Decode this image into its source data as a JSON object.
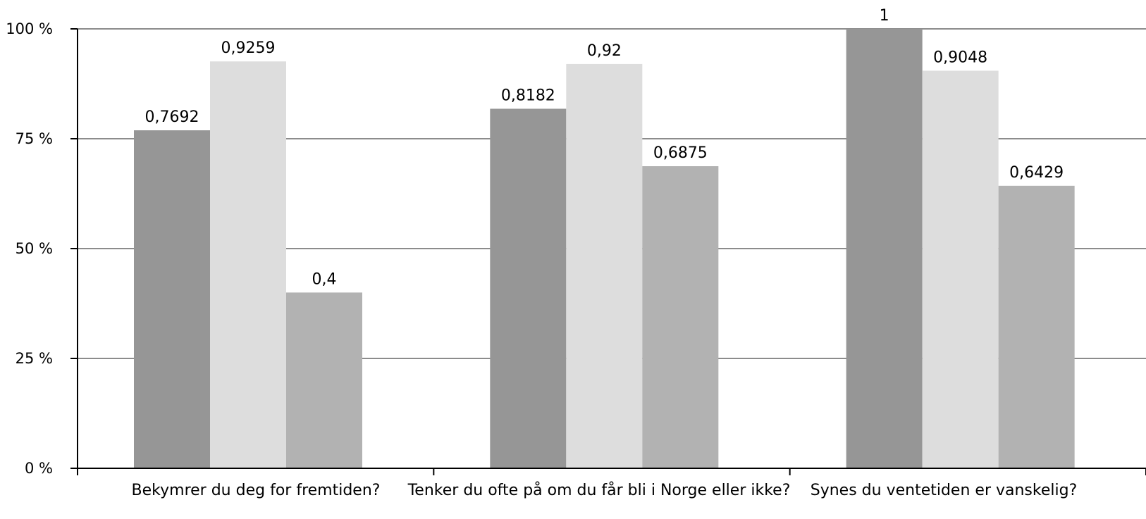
{
  "chart_data": {
    "type": "bar",
    "categories": [
      "Bekymrer du deg for fremtiden?",
      "Tenker du ofte på om du får bli i Norge eller ikke?",
      "Synes du ventetiden er vanskelig?"
    ],
    "series": [
      {
        "values": [
          0.7692,
          0.8182,
          1
        ],
        "labels": [
          "0,7692",
          "0,8182",
          "1"
        ],
        "color": "#969696"
      },
      {
        "values": [
          0.9259,
          0.92,
          0.9048
        ],
        "labels": [
          "0,9259",
          "0,92",
          "0,9048"
        ],
        "color": "#dddddd"
      },
      {
        "values": [
          0.4,
          0.6875,
          0.6429
        ],
        "labels": [
          "0,4",
          "0,6875",
          "0,6429"
        ],
        "color": "#b2b2b2"
      }
    ],
    "ylim": [
      0,
      1
    ],
    "yticks": [
      0,
      0.25,
      0.5,
      0.75,
      1
    ],
    "ytick_labels": [
      "0 %",
      "25 %",
      "50 %",
      "75 %",
      "100 %"
    ],
    "grid": true,
    "legend": "none",
    "title": "",
    "xlabel": "",
    "ylabel": ""
  }
}
